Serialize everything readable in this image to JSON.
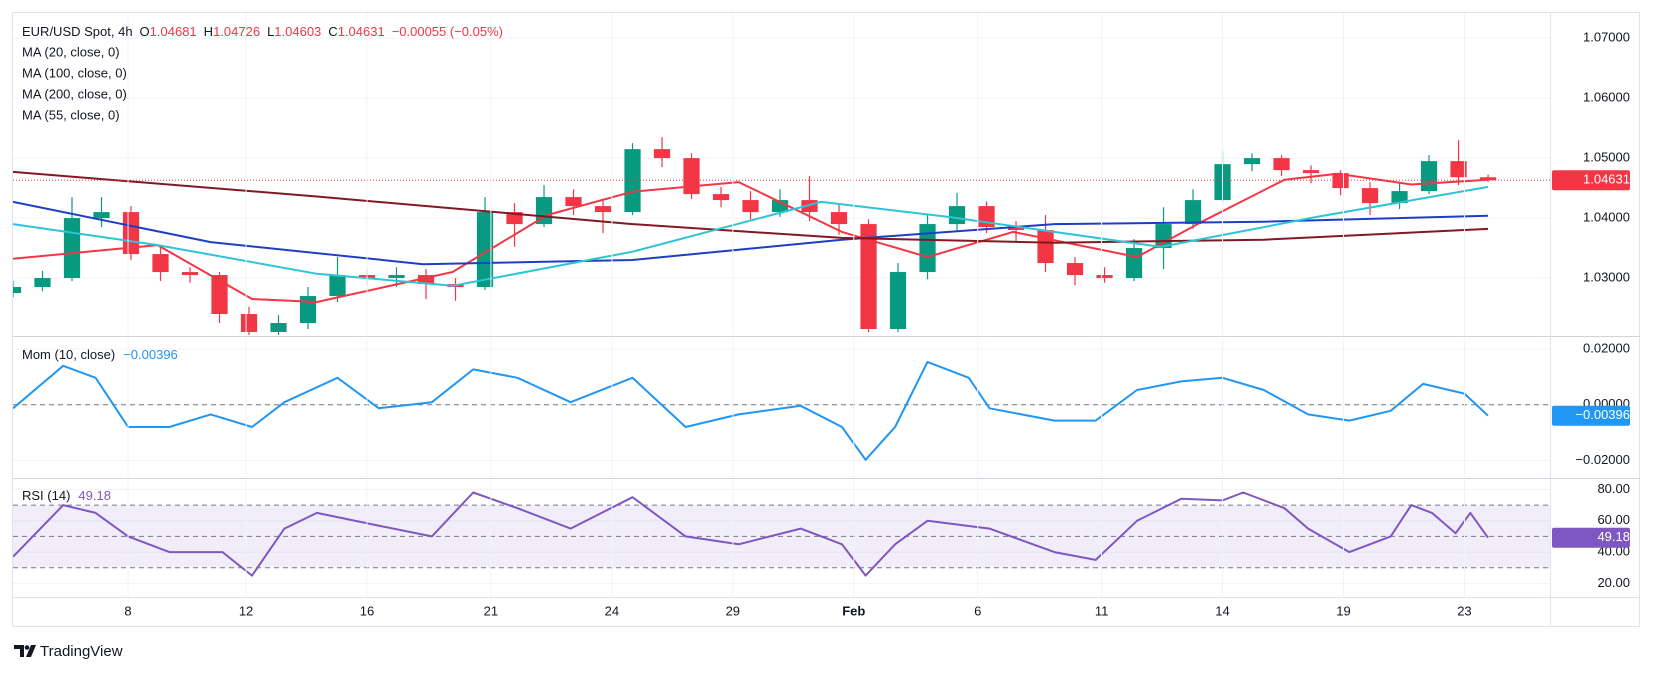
{
  "chart_data": [
    {
      "type": "candlestick",
      "title": "EUR/USD Spot, 4h",
      "ohlc_labels": [
        "O",
        "H",
        "L",
        "C"
      ],
      "change": "−0.00055 (−0.05%)",
      "up_color": "#089981",
      "down_color": "#f23645",
      "grid": true,
      "xlim": [
        0,
        52.1
      ],
      "ylim": [
        1.0205,
        1.0742
      ],
      "yticks": [
        {
          "value": 1.03,
          "label": "1.03000"
        },
        {
          "value": 1.04,
          "label": "1.04000"
        },
        {
          "value": 1.05,
          "label": "1.05000"
        },
        {
          "value": 1.06,
          "label": "1.06000"
        },
        {
          "value": 1.07,
          "label": "1.07000"
        }
      ],
      "x": [
        0,
        1,
        2,
        3,
        4,
        5,
        6,
        7,
        8,
        9,
        10,
        11,
        12,
        13,
        14,
        15,
        16,
        17,
        18,
        19,
        20,
        21,
        22,
        23,
        24,
        25,
        26,
        27,
        28,
        29,
        30,
        31,
        32,
        33,
        34,
        35,
        36,
        37,
        38,
        39,
        40,
        41,
        42,
        43,
        44,
        45,
        46,
        47,
        48,
        49,
        50
      ],
      "open": [
        1.0275,
        1.0285,
        1.03,
        1.04,
        1.041,
        1.034,
        1.031,
        1.0305,
        1.024,
        1.021,
        1.0225,
        1.027,
        1.0305,
        1.03,
        1.0305,
        1.029,
        1.0285,
        1.041,
        1.039,
        1.0435,
        1.042,
        1.041,
        1.0515,
        1.05,
        1.044,
        1.043,
        1.041,
        1.043,
        1.041,
        1.039,
        1.0215,
        1.031,
        1.039,
        1.042,
        1.0385,
        1.038,
        1.0325,
        1.0305,
        1.03,
        1.035,
        1.039,
        1.043,
        1.049,
        1.05,
        1.048,
        1.0475,
        1.045,
        1.0425,
        1.0445,
        1.0495,
        1.04681
      ],
      "high": [
        1.0295,
        1.0312,
        1.0435,
        1.0435,
        1.042,
        1.0352,
        1.0318,
        1.031,
        1.0252,
        1.0238,
        1.0285,
        1.0335,
        1.0315,
        1.0318,
        1.0315,
        1.03,
        1.0435,
        1.0425,
        1.0455,
        1.0448,
        1.0432,
        1.0525,
        1.0535,
        1.0508,
        1.0452,
        1.0445,
        1.0448,
        1.047,
        1.0422,
        1.0398,
        1.0325,
        1.0405,
        1.0442,
        1.0428,
        1.0395,
        1.0405,
        1.0335,
        1.0318,
        1.0365,
        1.0418,
        1.0448,
        1.0512,
        1.0508,
        1.0505,
        1.0488,
        1.048,
        1.046,
        1.0458,
        1.0505,
        1.053,
        1.04726
      ],
      "low": [
        1.0268,
        1.0278,
        1.0295,
        1.0385,
        1.033,
        1.0295,
        1.0292,
        1.0225,
        1.0198,
        1.0205,
        1.0215,
        1.026,
        1.0288,
        1.0285,
        1.0265,
        1.0262,
        1.028,
        1.0352,
        1.0385,
        1.0405,
        1.0375,
        1.0405,
        1.0485,
        1.0432,
        1.0418,
        1.0398,
        1.0402,
        1.0395,
        1.0372,
        1.021,
        1.021,
        1.0298,
        1.0378,
        1.0375,
        1.0362,
        1.031,
        1.0288,
        1.0292,
        1.0295,
        1.0315,
        1.0382,
        1.0425,
        1.0478,
        1.047,
        1.0458,
        1.0438,
        1.0405,
        1.0415,
        1.044,
        1.0455,
        1.04603
      ],
      "close": [
        1.0285,
        1.03,
        1.04,
        1.041,
        1.034,
        1.031,
        1.0305,
        1.024,
        1.021,
        1.0225,
        1.027,
        1.0305,
        1.03,
        1.0305,
        1.029,
        1.0285,
        1.041,
        1.039,
        1.0435,
        1.042,
        1.041,
        1.0515,
        1.05,
        1.044,
        1.043,
        1.041,
        1.043,
        1.041,
        1.039,
        1.0215,
        1.031,
        1.039,
        1.042,
        1.0385,
        1.038,
        1.0325,
        1.0305,
        1.03,
        1.035,
        1.039,
        1.043,
        1.049,
        1.05,
        1.048,
        1.0475,
        1.045,
        1.0425,
        1.0445,
        1.0495,
        1.04681,
        1.04631
      ],
      "series": [
        {
          "name": "MA (20, close, 0)",
          "color": "#f23645",
          "x": [
            0,
            4.9,
            8.1,
            10.3,
            14.9,
            18.1,
            21,
            24.6,
            28.1,
            31,
            33.9,
            38.1,
            40.3,
            43.1,
            44.9,
            47.4,
            50
          ],
          "values": [
            1.0332,
            1.0355,
            1.0265,
            1.026,
            1.031,
            1.0405,
            1.0444,
            1.046,
            1.0377,
            1.0335,
            1.0377,
            1.0335,
            1.0394,
            1.0464,
            1.0474,
            1.0456,
            1.0464
          ]
        },
        {
          "name": "MA (100, close, 0)",
          "color": "#1e3fc4",
          "x": [
            0,
            6.7,
            13.9,
            21,
            28.1,
            35.3,
            42.4,
            50
          ],
          "values": [
            1.0427,
            1.036,
            1.0323,
            1.033,
            1.0364,
            1.039,
            1.0394,
            1.0404
          ]
        },
        {
          "name": "MA (200, close, 0)",
          "color": "#801922",
          "x": [
            0,
            10.3,
            21,
            28.1,
            35.3,
            42.4,
            50
          ],
          "values": [
            1.0477,
            1.0436,
            1.039,
            1.0367,
            1.0359,
            1.0364,
            1.0382
          ]
        },
        {
          "name": "MA (55, close, 0)",
          "color": "#2ec4d6",
          "x": [
            0,
            4.9,
            10.3,
            14.9,
            21,
            27.4,
            31.7,
            38.9,
            44.2,
            50
          ],
          "values": [
            1.039,
            1.0355,
            1.0307,
            1.0287,
            1.0344,
            1.0427,
            1.0402,
            1.0352,
            1.0402,
            1.0452
          ]
        }
      ]
    },
    {
      "type": "line",
      "title": "Mom (10, close)",
      "value_label": "−0.00396",
      "grid": true,
      "xlim": [
        0,
        52.1
      ],
      "ylim": [
        -0.026,
        0.024
      ],
      "levels": [
        0
      ],
      "yticks": [
        {
          "value": -0.02,
          "label": "−0.02000"
        },
        {
          "value": 0,
          "label": "0.00000"
        },
        {
          "value": 0.02,
          "label": "0.02000"
        }
      ],
      "series": [
        {
          "color": "#2196f3",
          "x": [
            0,
            1.7,
            2.8,
            3.9,
            5.3,
            6.7,
            8.1,
            9.2,
            11,
            12.4,
            14.2,
            15.6,
            17.1,
            18.9,
            21,
            22.8,
            24.6,
            26.7,
            28.1,
            28.9,
            29.9,
            31,
            32.4,
            33.1,
            35.3,
            36.7,
            38.1,
            39.6,
            41,
            42.4,
            43.9,
            45.3,
            46.7,
            47.8,
            49.2,
            50
          ],
          "values": [
            -0.0013,
            0.014,
            0.0097,
            -0.008,
            -0.008,
            -0.0035,
            -0.008,
            0.0009,
            0.0097,
            -0.0013,
            0.0009,
            0.0127,
            0.0097,
            0.0009,
            0.0097,
            -0.008,
            -0.0035,
            -0.0004,
            -0.008,
            -0.0198,
            -0.008,
            0.0154,
            0.0097,
            -0.0013,
            -0.0057,
            -0.0057,
            0.0053,
            0.0084,
            0.0097,
            0.0053,
            -0.0035,
            -0.0057,
            -0.0022,
            0.0075,
            0.004,
            -0.00396
          ]
        }
      ]
    },
    {
      "type": "line",
      "title": "RSI (14)",
      "grid": true,
      "xlim": [
        0,
        52.1
      ],
      "ylim": [
        12,
        86
      ],
      "levels": [
        30,
        50,
        70
      ],
      "yticks": [
        {
          "value": 20,
          "label": "20.00"
        },
        {
          "value": 40,
          "label": "40.00"
        },
        {
          "value": 60,
          "label": "60.00"
        },
        {
          "value": 80,
          "label": "80.00"
        }
      ],
      "xticks": [
        {
          "value": 3.9,
          "label": "8"
        },
        {
          "value": 7.9,
          "label": "12"
        },
        {
          "value": 12,
          "label": "16"
        },
        {
          "value": 16.2,
          "label": "21"
        },
        {
          "value": 20.3,
          "label": "24"
        },
        {
          "value": 24.4,
          "label": "29"
        },
        {
          "value": 28.5,
          "label": "Feb"
        },
        {
          "value": 32.7,
          "label": "6"
        },
        {
          "value": 36.9,
          "label": "11"
        },
        {
          "value": 41,
          "label": "14"
        },
        {
          "value": 45.1,
          "label": "19"
        },
        {
          "value": 49.2,
          "label": "23"
        }
      ],
      "series": [
        {
          "color": "#7e57c2",
          "x": [
            0,
            1.7,
            2.8,
            3.9,
            5.3,
            7.1,
            8.1,
            9.2,
            10.3,
            12.1,
            14.2,
            15.6,
            17.1,
            18.9,
            21,
            22.8,
            24.6,
            26.7,
            28.1,
            28.9,
            29.9,
            31,
            33.1,
            35.3,
            36.7,
            38.1,
            39.6,
            41,
            41.7,
            43.1,
            43.9,
            45.3,
            46.7,
            47.4,
            48.1,
            48.9,
            49.4,
            50
          ],
          "values": [
            37,
            70,
            65,
            50,
            40,
            40,
            25,
            55,
            65,
            58,
            50,
            78,
            68,
            55,
            75,
            50,
            45,
            55,
            45,
            25,
            45,
            60,
            55,
            40,
            35,
            60,
            74,
            73,
            78,
            68,
            55,
            40,
            50,
            70,
            65,
            52,
            65,
            49.18
          ]
        }
      ]
    }
  ],
  "brand": "TradingView"
}
